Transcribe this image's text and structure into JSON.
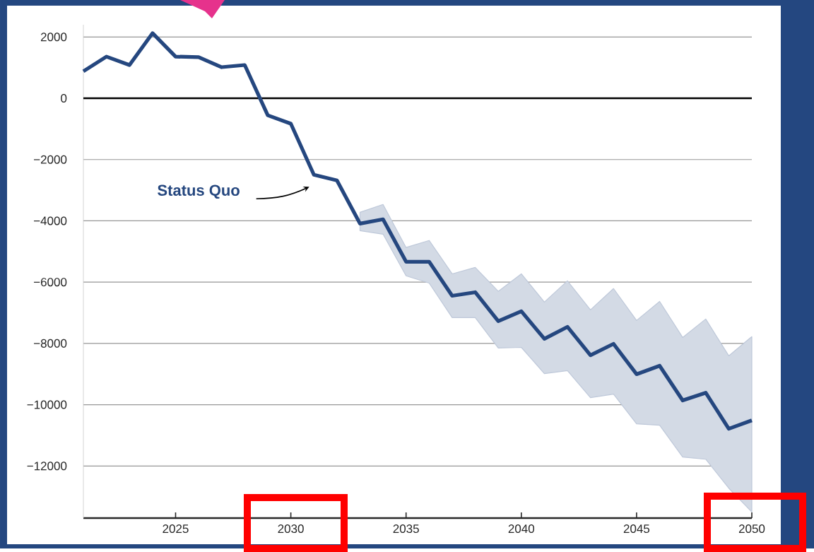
{
  "chart_data": {
    "type": "line",
    "x": [
      2021,
      2022,
      2023,
      2024,
      2025,
      2026,
      2027,
      2028,
      2029,
      2030,
      2031,
      2032,
      2033,
      2034,
      2035,
      2036,
      2037,
      2038,
      2039,
      2040,
      2041,
      2042,
      2043,
      2044,
      2045,
      2046,
      2047,
      2048,
      2049,
      2050
    ],
    "series": [
      {
        "name": "Status Quo",
        "color": "#25477f",
        "values": [
          880,
          1360,
          1085,
          2125,
          1360,
          1340,
          1015,
          1085,
          -555,
          -830,
          -2495,
          -2680,
          -4090,
          -3950,
          -5335,
          -5335,
          -6445,
          -6330,
          -7275,
          -6950,
          -7850,
          -7460,
          -8385,
          -8015,
          -9005,
          -8730,
          -9860,
          -9610,
          -10785,
          -10510
        ],
        "upper": [
          null,
          null,
          null,
          null,
          null,
          null,
          null,
          null,
          null,
          null,
          null,
          null,
          -3720,
          -3465,
          -4870,
          -4640,
          -5730,
          -5520,
          -6300,
          -5730,
          -6650,
          -5960,
          -6905,
          -6210,
          -7250,
          -6630,
          -7805,
          -7205,
          -8405,
          -7780
        ],
        "lower": [
          null,
          null,
          null,
          null,
          null,
          null,
          null,
          null,
          null,
          null,
          null,
          null,
          -4320,
          -4435,
          -5795,
          -6030,
          -7160,
          -7160,
          -8150,
          -8130,
          -8985,
          -8890,
          -9770,
          -9655,
          -10625,
          -10670,
          -11710,
          -11780,
          -12725,
          -13500
        ]
      }
    ],
    "xlim": [
      2021,
      2050
    ],
    "xticks": [
      2025,
      2030,
      2035,
      2040,
      2045,
      2050
    ],
    "ylim": [
      -13700,
      2400
    ],
    "yticks": [
      2000,
      0,
      {
        "value": -2000,
        "label": "−2000"
      },
      {
        "value": -4000,
        "label": "−4000"
      },
      {
        "value": -6000,
        "label": "−6000"
      },
      {
        "value": -8000,
        "label": "−8000"
      },
      {
        "value": -10000,
        "label": "−10000"
      },
      {
        "value": -12000,
        "label": "−12000"
      }
    ],
    "ref_lines": [
      {
        "axis": "y",
        "value": 0,
        "color": "#000000"
      }
    ],
    "grid": "y",
    "marker": "none",
    "line_style": "solid"
  }
}
